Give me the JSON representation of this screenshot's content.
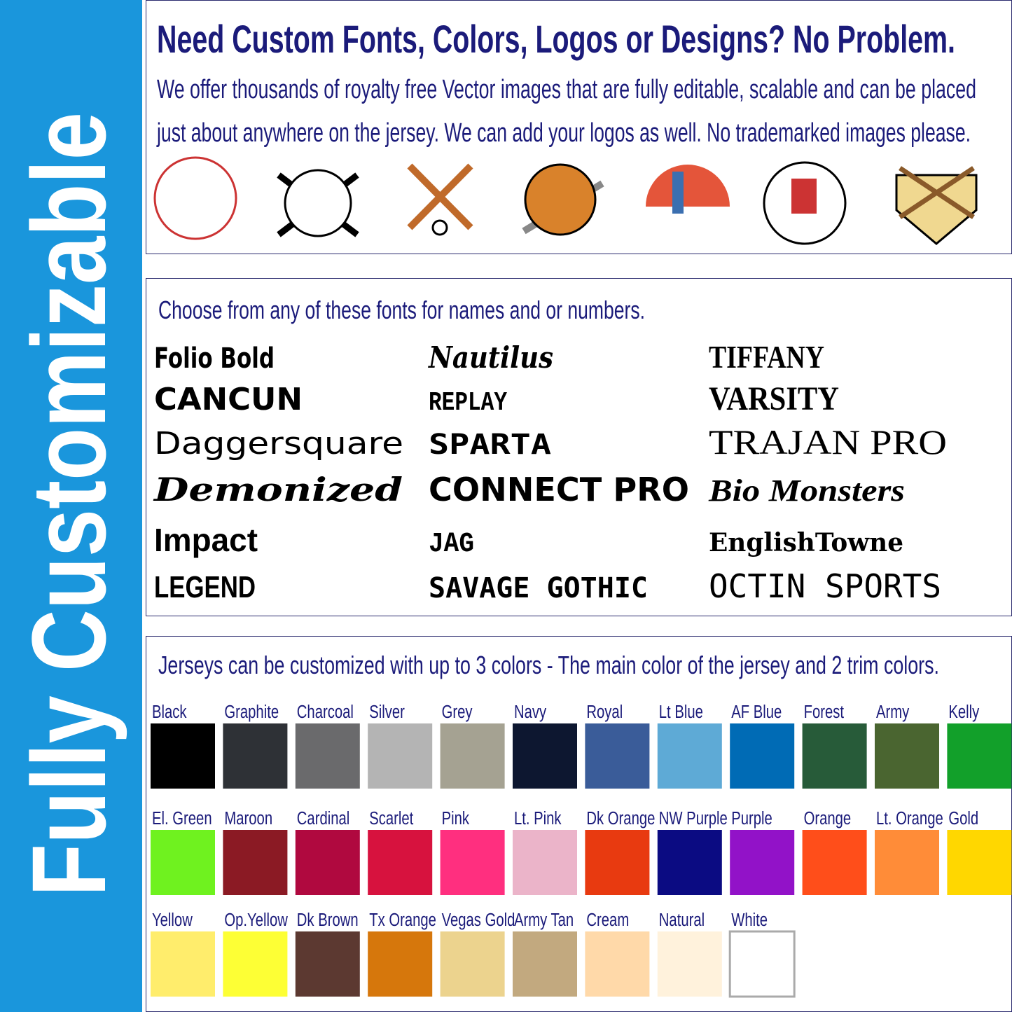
{
  "sidebar": {
    "title": "Fully Customizable"
  },
  "graphics": {
    "title": "Need Custom Fonts, Colors, Logos or Designs? No Problem.",
    "description": [
      "We offer thousands of royalty free Vector images that are fully editable, scalable and can be placed",
      "just about anywhere on the jersey.  We can add your logos as well.  No trademarked images please."
    ]
  },
  "fonts": {
    "heading": "Choose from any of these fonts for names and or numbers.",
    "columns": [
      [
        "Folio Bold",
        "CANCUN",
        "Daggersquare",
        "Demonized",
        "Impact",
        "LEGEND"
      ],
      [
        "Nautilus",
        "REPLAY",
        "SPARTA",
        "CONNECT PRO",
        "JAG",
        "SAVAGE GOTHIC"
      ],
      [
        "TIFFANY",
        "VARSITY",
        "TRAJAN PRO",
        "Bio Monsters",
        "EnglishTowne",
        "OCTIN SPORTS"
      ]
    ]
  },
  "colors": {
    "heading": "Jerseys can be customized with up to 3 colors - The main color of the jersey and 2 trim colors.",
    "rows": [
      [
        {
          "name": "Black",
          "color": "#000000"
        },
        {
          "name": "Graphite",
          "color": "#2e3136"
        },
        {
          "name": "Charcoal",
          "color": "#6a6a6c"
        },
        {
          "name": "Silver",
          "color": "#b4b4b4"
        },
        {
          "name": "Grey",
          "color": "#a5a292"
        },
        {
          "name": "Navy",
          "color": "#0d1730"
        },
        {
          "name": "Royal",
          "color": "#3a5c99"
        },
        {
          "name": "Lt Blue",
          "color": "#5eaad6"
        },
        {
          "name": "AF Blue",
          "color": "#006bb5"
        },
        {
          "name": "Forest",
          "color": "#275b39"
        },
        {
          "name": "Army",
          "color": "#4a6530"
        },
        {
          "name": "Kelly",
          "color": "#12a02a"
        }
      ],
      [
        {
          "name": "El. Green",
          "color": "#6ff21f"
        },
        {
          "name": "Maroon",
          "color": "#8b1a24"
        },
        {
          "name": "Cardinal",
          "color": "#b0093f"
        },
        {
          "name": "Scarlet",
          "color": "#d7123e"
        },
        {
          "name": "Pink",
          "color": "#ff2f7f"
        },
        {
          "name": "Lt. Pink",
          "color": "#ebb4c9"
        },
        {
          "name": "Dk Orange",
          "color": "#e83a10"
        },
        {
          "name": "NW Purple",
          "color": "#0b0b82"
        },
        {
          "name": "Purple",
          "color": "#9212c8"
        },
        {
          "name": "Orange",
          "color": "#ff4e1a"
        },
        {
          "name": "Lt. Orange",
          "color": "#ff8c38"
        },
        {
          "name": "Gold",
          "color": "#ffd700"
        }
      ],
      [
        {
          "name": "Yellow",
          "color": "#ffed6c"
        },
        {
          "name": "Op.Yellow",
          "color": "#fdff35"
        },
        {
          "name": "Dk Brown",
          "color": "#5c3931"
        },
        {
          "name": "Tx Orange",
          "color": "#d6770c"
        },
        {
          "name": "Vegas Gold",
          "color": "#ecd38e"
        },
        {
          "name": "Army Tan",
          "color": "#c2a97f"
        },
        {
          "name": "Cream",
          "color": "#ffd9a9"
        },
        {
          "name": "Natural",
          "color": "#fff2dc"
        },
        {
          "name": "White",
          "color": "#ffffff"
        }
      ]
    ]
  }
}
